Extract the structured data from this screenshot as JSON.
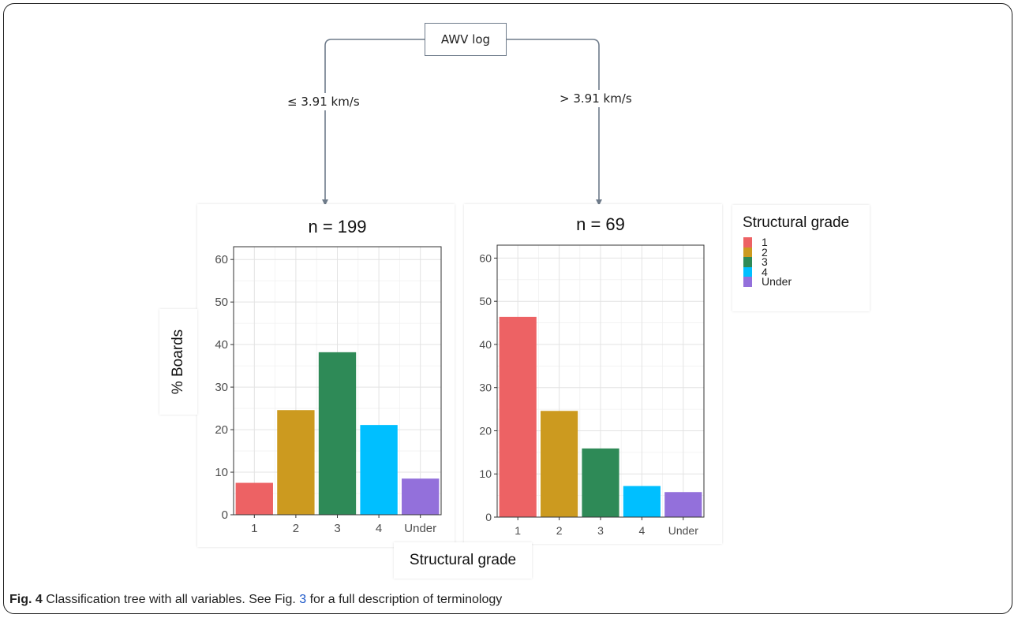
{
  "tree": {
    "root_label": "AWV log",
    "left_edge_label": "≤ 3.91 km/s",
    "right_edge_label": "> 3.91 km/s"
  },
  "legend": {
    "title": "Structural grade",
    "items": [
      {
        "label": "1",
        "color": "#ED6264"
      },
      {
        "label": "2",
        "color": "#CC9A1F"
      },
      {
        "label": "3",
        "color": "#2E8A57"
      },
      {
        "label": "4",
        "color": "#00BFFF"
      },
      {
        "label": "Under",
        "color": "#9370DB"
      }
    ]
  },
  "axes": {
    "ylabel": "% Boards",
    "xlabel": "Structural grade"
  },
  "chart_data": [
    {
      "type": "bar",
      "title": "n = 199",
      "categories": [
        "1",
        "2",
        "3",
        "4",
        "Under"
      ],
      "values": [
        7.5,
        24.6,
        38.2,
        21.1,
        8.5
      ],
      "ylim": [
        0,
        63
      ],
      "yticks": [
        0,
        10,
        20,
        30,
        40,
        50,
        60
      ],
      "grid": true,
      "xlabel": "Structural grade",
      "ylabel": "% Boards",
      "colors": [
        "#ED6264",
        "#CC9A1F",
        "#2E8A57",
        "#00BFFF",
        "#9370DB"
      ]
    },
    {
      "type": "bar",
      "title": "n = 69",
      "categories": [
        "1",
        "2",
        "3",
        "4",
        "Under"
      ],
      "values": [
        46.4,
        24.6,
        15.9,
        7.2,
        5.8
      ],
      "ylim": [
        0,
        63
      ],
      "yticks": [
        0,
        10,
        20,
        30,
        40,
        50,
        60
      ],
      "grid": true,
      "xlabel": "Structural grade",
      "ylabel": "% Boards",
      "colors": [
        "#ED6264",
        "#CC9A1F",
        "#2E8A57",
        "#00BFFF",
        "#9370DB"
      ]
    }
  ],
  "caption": {
    "label": "Fig. 4",
    "text_before": " Classification tree with all variables. See Fig. ",
    "link": "3",
    "text_after": " for a full description of terminology"
  }
}
